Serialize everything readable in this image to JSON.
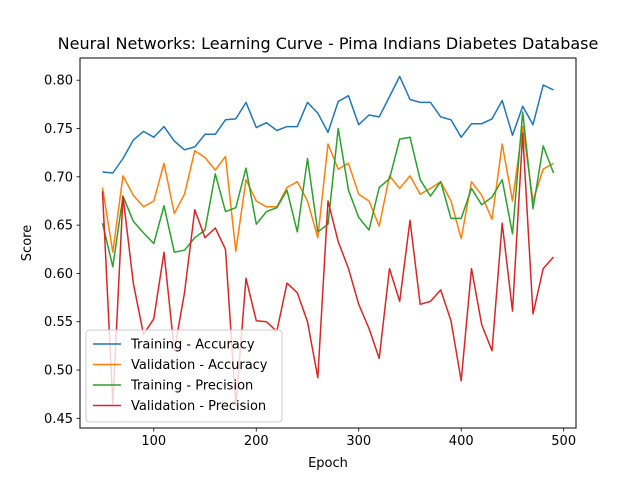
{
  "chart_data": {
    "type": "line",
    "title": "Neural Networks: Learning Curve - Pima Indians Diabetes Database",
    "xlabel": "Epoch",
    "ylabel": "Score",
    "xlim": [
      28,
      512
    ],
    "ylim": [
      0.44,
      0.823
    ],
    "xticks": [
      100,
      200,
      300,
      400,
      500
    ],
    "yticks": [
      0.45,
      0.5,
      0.55,
      0.6,
      0.65,
      0.7,
      0.75,
      0.8
    ],
    "grid": false,
    "legend_position": "lower-left",
    "x": [
      50,
      60,
      70,
      80,
      90,
      100,
      110,
      120,
      130,
      140,
      150,
      160,
      170,
      180,
      190,
      200,
      210,
      220,
      230,
      240,
      250,
      260,
      270,
      280,
      290,
      300,
      310,
      320,
      330,
      340,
      350,
      360,
      370,
      380,
      390,
      400,
      410,
      420,
      430,
      440,
      450,
      460,
      470,
      480,
      490
    ],
    "series": [
      {
        "name": "Training - Accuracy",
        "color": "#1f77b4",
        "values": [
          0.705,
          0.704,
          0.719,
          0.738,
          0.747,
          0.741,
          0.752,
          0.737,
          0.728,
          0.731,
          0.744,
          0.744,
          0.759,
          0.76,
          0.777,
          0.751,
          0.756,
          0.748,
          0.752,
          0.752,
          0.777,
          0.766,
          0.746,
          0.778,
          0.784,
          0.754,
          0.764,
          0.762,
          0.783,
          0.804,
          0.78,
          0.777,
          0.777,
          0.762,
          0.759,
          0.741,
          0.755,
          0.755,
          0.76,
          0.779,
          0.743,
          0.773,
          0.754,
          0.795,
          0.79
        ]
      },
      {
        "name": "Validation - Accuracy",
        "color": "#ff7f0e",
        "values": [
          0.689,
          0.622,
          0.701,
          0.681,
          0.669,
          0.675,
          0.714,
          0.662,
          0.682,
          0.727,
          0.72,
          0.707,
          0.721,
          0.623,
          0.697,
          0.675,
          0.669,
          0.669,
          0.689,
          0.695,
          0.675,
          0.637,
          0.734,
          0.708,
          0.714,
          0.682,
          0.675,
          0.649,
          0.701,
          0.688,
          0.701,
          0.682,
          0.688,
          0.695,
          0.675,
          0.636,
          0.695,
          0.681,
          0.656,
          0.734,
          0.675,
          0.752,
          0.675,
          0.708,
          0.714
        ]
      },
      {
        "name": "Training - Precision",
        "color": "#2ca02c",
        "values": [
          0.652,
          0.607,
          0.68,
          0.654,
          0.642,
          0.631,
          0.67,
          0.622,
          0.624,
          0.637,
          0.645,
          0.703,
          0.664,
          0.668,
          0.709,
          0.651,
          0.664,
          0.668,
          0.686,
          0.643,
          0.719,
          0.643,
          0.651,
          0.75,
          0.686,
          0.658,
          0.645,
          0.689,
          0.698,
          0.739,
          0.741,
          0.697,
          0.68,
          0.695,
          0.657,
          0.657,
          0.688,
          0.671,
          0.679,
          0.697,
          0.641,
          0.767,
          0.667,
          0.732,
          0.704
        ]
      },
      {
        "name": "Validation - Precision",
        "color": "#d62728",
        "values": [
          0.685,
          0.465,
          0.68,
          0.59,
          0.537,
          0.553,
          0.622,
          0.52,
          0.58,
          0.666,
          0.637,
          0.647,
          0.625,
          0.463,
          0.595,
          0.551,
          0.55,
          0.54,
          0.59,
          0.58,
          0.55,
          0.492,
          0.675,
          0.633,
          0.605,
          0.568,
          0.543,
          0.512,
          0.605,
          0.571,
          0.655,
          0.568,
          0.571,
          0.583,
          0.551,
          0.489,
          0.605,
          0.547,
          0.52,
          0.652,
          0.561,
          0.745,
          0.558,
          0.605,
          0.617
        ]
      }
    ]
  }
}
